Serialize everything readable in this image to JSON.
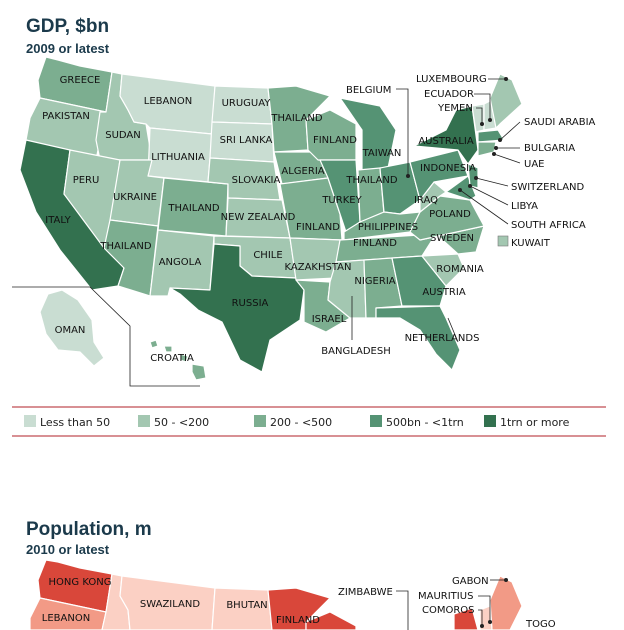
{
  "gdp": {
    "title": "GDP, $bn",
    "subtitle": "2009 or latest",
    "colors": {
      "c1": "#c9ddd2",
      "c2": "#a3c7b1",
      "c3": "#7cae90",
      "c4": "#559374",
      "c5": "#33714f"
    },
    "legend": [
      {
        "label": "Less than 50",
        "color": "#c9ddd2"
      },
      {
        "label": "50 - <200",
        "color": "#a3c7b1"
      },
      {
        "label": "200 - <500",
        "color": "#7cae90"
      },
      {
        "label": "500bn - <1trn",
        "color": "#559374"
      },
      {
        "label": "1trn or more",
        "color": "#33714f"
      }
    ],
    "labels": {
      "washington": "GREECE",
      "oregon": "PAKISTAN",
      "california": "ITALY",
      "idaho": "SUDAN",
      "nevada": "PERU",
      "montana": "LEBANON",
      "wyoming": "LITHUANIA",
      "utah": "UKRAINE",
      "arizona": "THAILAND",
      "colorado": "THAILAND",
      "newmexico": "ANGOLA",
      "northdakota": "URUGUAY",
      "southdakota": "SRI LANKA",
      "nebraska": "SLOVAKIA",
      "kansas": "NEW ZEALAND",
      "oklahoma": "CHILE",
      "texas": "RUSSIA",
      "minnesota": "THAILAND",
      "iowa": "ALGERIA",
      "missouri": "FINLAND",
      "arkansas": "KAZAKHSTAN",
      "louisiana": "ISRAEL",
      "wisconsin": "FINLAND",
      "illinois": "TURKEY",
      "michigan": "TAIWAN",
      "indiana": "THAILAND",
      "ohio": "INDONESIA",
      "kentucky": "PHILIPPINES",
      "tennessee": "FINLAND",
      "mississippi": "NIGERIA",
      "alabama": "",
      "georgia": "AUSTRIA",
      "florida": "NETHERLANDS",
      "southcarolina": "ROMANIA",
      "northcarolina": "SWEDEN",
      "virginia": "POLAND",
      "westvirginia": "IRAQ",
      "pennsylvania": "",
      "newyork": "AUSTRALIA",
      "alaska": "OMAN",
      "hawaii": "CROATIA",
      "belgium": "BELGIUM",
      "luxembourg": "LUXEMBOURG",
      "ecuador": "ECUADOR",
      "yemen": "YEMEN",
      "saudi": "SAUDI ARABIA",
      "bulgaria": "BULGARIA",
      "uae": "UAE",
      "switzerland": "SWITZERLAND",
      "libya": "LIBYA",
      "southafrica": "SOUTH AFRICA",
      "kuwait": "KUWAIT",
      "bangladesh": "BANGLADESH"
    }
  },
  "population": {
    "title": "Population, m",
    "subtitle": "2010 or latest",
    "labels": {
      "washington": "HONG KONG",
      "oregon": "LEBANON",
      "montana": "SWAZILAND",
      "northdakota": "BHUTAN",
      "minnesota": "FINLAND",
      "zimbabwe": "ZIMBABWE",
      "gabon": "GABON",
      "mauritius": "MAURITIUS",
      "comoros": "COMOROS",
      "togo": "TOGO"
    }
  }
}
